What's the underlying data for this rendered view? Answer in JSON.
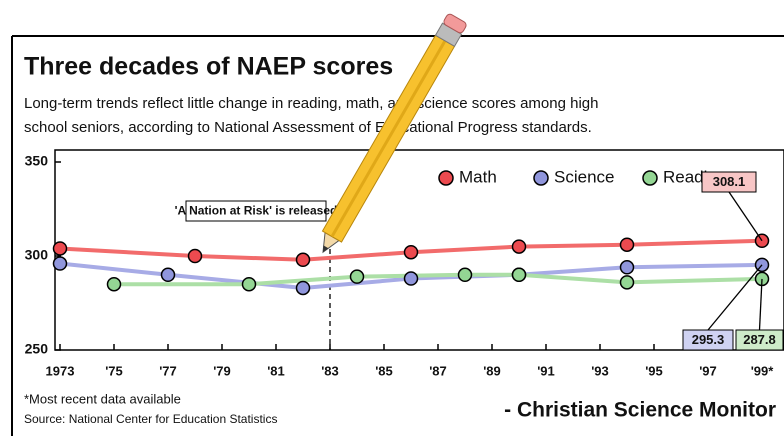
{
  "chart_data": {
    "type": "line",
    "title": "Three decades of NAEP scores",
    "subtitle": [
      "Long-term trends reflect little change in reading, math, and science scores among high",
      "school seniors, according to National Assessment of Educational Progress standards."
    ],
    "series": [
      {
        "name": "Math",
        "color": "#ec4a4f",
        "line_color": "#f26b6b",
        "x": [
          1973,
          1978,
          1982,
          1986,
          1990,
          1994,
          1999
        ],
        "values": [
          304,
          300,
          298,
          302,
          305,
          306,
          308.1
        ]
      },
      {
        "name": "Science",
        "color": "#9096dc",
        "line_color": "#a7abe6",
        "x": [
          1973,
          1977,
          1982,
          1986,
          1990,
          1994,
          1999
        ],
        "values": [
          296,
          290,
          283,
          288,
          290,
          294,
          295.3
        ]
      },
      {
        "name": "Reading",
        "color": "#94d694",
        "line_color": "#acdfa6",
        "x": [
          1975,
          1980,
          1984,
          1988,
          1990,
          1994,
          1999
        ],
        "values": [
          285,
          285,
          289,
          290,
          290,
          286,
          287.8
        ]
      }
    ],
    "xlim": [
      1973,
      1999
    ],
    "xticks": [
      1973,
      {
        "value": 1975,
        "label": "'75"
      },
      {
        "value": 1977,
        "label": "'77"
      },
      {
        "value": 1979,
        "label": "'79"
      },
      {
        "value": 1981,
        "label": "'81"
      },
      {
        "value": 1983,
        "label": "'83"
      },
      {
        "value": 1985,
        "label": "'85"
      },
      {
        "value": 1987,
        "label": "'87"
      },
      {
        "value": 1989,
        "label": "'89"
      },
      {
        "value": 1991,
        "label": "'91"
      },
      {
        "value": 1993,
        "label": "'93"
      },
      {
        "value": 1995,
        "label": "'95"
      },
      {
        "value": 1997,
        "label": "'97"
      },
      {
        "value": 1999,
        "label": "'99*"
      }
    ],
    "ylim": [
      250,
      350
    ],
    "yticks": [
      250,
      300,
      350
    ],
    "annotation": {
      "text": "'A Nation at Risk' is released",
      "x": 1983
    },
    "footnote": "*Most recent data available",
    "source": "Source: National Center for Education Statistics",
    "credit": "- Christian Science Monitor"
  }
}
